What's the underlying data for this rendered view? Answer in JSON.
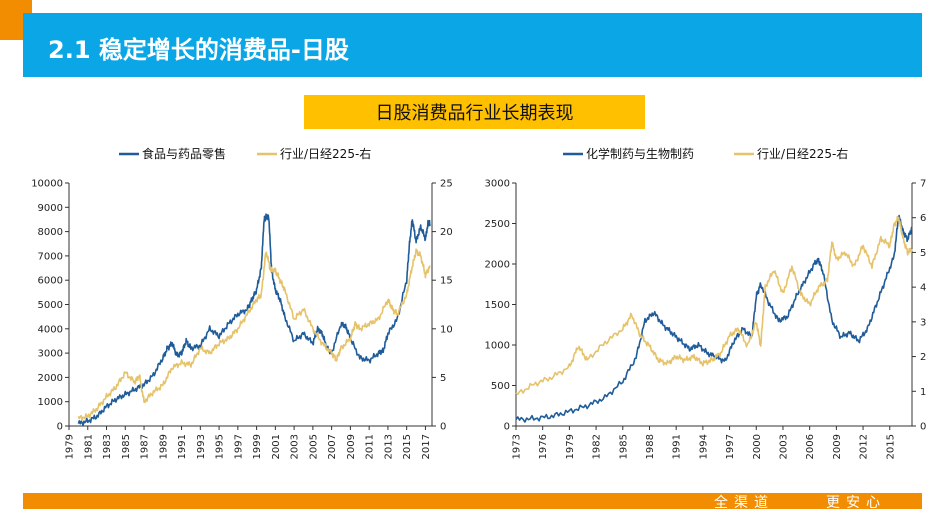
{
  "header": {
    "title": "2.1 稳定增长的消费品-日股"
  },
  "subtitle": "日股消费品行业长期表现",
  "footer": {
    "left": "全渠道",
    "right": "更安心"
  },
  "colors": {
    "blue": "#1f5c99",
    "gold": "#e6c36a",
    "title_bar": "#0aa6e6",
    "accent": "#f28c00",
    "subtitle_bg": "#ffc000"
  },
  "chart_data": [
    {
      "type": "line",
      "legend_position": "top",
      "x_range": [
        1979,
        2017.7
      ],
      "x_ticks": [
        "1979",
        "1981",
        "1983",
        "1985",
        "1987",
        "1989",
        "1991",
        "1993",
        "1995",
        "1997",
        "1999",
        "2001",
        "2003",
        "2005",
        "2007",
        "2009",
        "2011",
        "2013",
        "2015",
        "2017"
      ],
      "y_left": {
        "range": [
          0,
          10000
        ],
        "ticks": [
          "0",
          "1000",
          "2000",
          "3000",
          "4000",
          "5000",
          "6000",
          "7000",
          "8000",
          "9000",
          "10000"
        ]
      },
      "y_right": {
        "range": [
          0,
          25
        ],
        "ticks": [
          "0",
          "5",
          "10",
          "15",
          "20",
          "25"
        ]
      },
      "series": [
        {
          "name": "食品与药品零售",
          "axis": "left",
          "color": "#1f5c99",
          "x": [
            1980.0,
            1981.0,
            1982.0,
            1983.0,
            1984.0,
            1985.0,
            1986.0,
            1987.0,
            1988.0,
            1989.0,
            1989.5,
            1990.0,
            1990.5,
            1991.0,
            1991.5,
            1992.0,
            1993.0,
            1994.0,
            1995.0,
            1996.0,
            1997.0,
            1998.0,
            1998.5,
            1999.0,
            1999.5,
            1999.8,
            2000.0,
            2000.3,
            2000.6,
            2001.0,
            2001.5,
            2002.0,
            2003.0,
            2004.0,
            2005.0,
            2005.5,
            2006.0,
            2006.5,
            2007.0,
            2008.0,
            2008.5,
            2009.0,
            2010.0,
            2011.0,
            2012.0,
            2012.5,
            2013.0,
            2014.0,
            2015.0,
            2015.3,
            2015.6,
            2016.0,
            2016.5,
            2017.0,
            2017.3,
            2017.5
          ],
          "values": [
            100,
            200,
            400,
            800,
            1100,
            1300,
            1500,
            1700,
            2100,
            2800,
            3200,
            3400,
            2900,
            3000,
            3500,
            3200,
            3300,
            4000,
            3700,
            4200,
            4600,
            4800,
            5200,
            5600,
            6500,
            8500,
            8600,
            8600,
            6400,
            5600,
            5200,
            4500,
            3500,
            3800,
            3400,
            4000,
            3800,
            3200,
            3000,
            4200,
            4100,
            3600,
            2800,
            2700,
            3000,
            3100,
            3800,
            4400,
            6000,
            7500,
            8500,
            7600,
            8200,
            7700,
            8400,
            8300
          ]
        },
        {
          "name": "行业/日经225-右",
          "axis": "right",
          "color": "#e6c36a",
          "x": [
            1980.0,
            1981.0,
            1982.0,
            1983.0,
            1984.0,
            1985.0,
            1986.0,
            1986.5,
            1987.0,
            1988.0,
            1989.0,
            1990.0,
            1991.0,
            1992.0,
            1993.0,
            1994.0,
            1995.0,
            1996.0,
            1997.0,
            1998.0,
            1999.0,
            1999.5,
            2000.0,
            2000.5,
            2001.0,
            2001.5,
            2002.0,
            2003.0,
            2004.0,
            2005.0,
            2006.0,
            2007.0,
            2007.5,
            2008.0,
            2009.0,
            2009.5,
            2010.0,
            2011.0,
            2012.0,
            2013.0,
            2013.5,
            2014.0,
            2015.0,
            2015.5,
            2016.0,
            2016.5,
            2017.0,
            2017.5
          ],
          "values": [
            0.8,
            1.0,
            1.8,
            3.0,
            4.0,
            5.5,
            4.5,
            5.2,
            2.5,
            3.5,
            4.2,
            6.0,
            6.5,
            6.3,
            8.0,
            7.5,
            8.5,
            9.0,
            10.0,
            11.5,
            13.0,
            13.5,
            18.0,
            16.0,
            16.0,
            15.0,
            14.0,
            11.0,
            12.0,
            10.0,
            8.5,
            7.5,
            6.8,
            8.0,
            9.0,
            10.5,
            10.0,
            10.5,
            11.0,
            13.0,
            12.0,
            11.5,
            13.5,
            16.0,
            18.0,
            17.5,
            15.5,
            16.5
          ]
        }
      ]
    },
    {
      "type": "line",
      "legend_position": "top",
      "x_range": [
        1973,
        2017.5
      ],
      "x_ticks": [
        "1973",
        "1976",
        "1979",
        "1982",
        "1985",
        "1988",
        "1991",
        "1994",
        "1997",
        "2000",
        "2003",
        "2006",
        "2009",
        "2012",
        "2015"
      ],
      "y_left": {
        "range": [
          0,
          3000
        ],
        "ticks": [
          "0",
          "500",
          "1000",
          "1500",
          "2000",
          "2500",
          "3000"
        ]
      },
      "y_right": {
        "range": [
          0,
          7
        ],
        "ticks": [
          "0",
          "1",
          "2",
          "3",
          "4",
          "5",
          "6",
          "7"
        ]
      },
      "series": [
        {
          "name": "化学制药与生物制药",
          "axis": "left",
          "color": "#1f5c99",
          "x": [
            1973.0,
            1975.0,
            1977.0,
            1979.0,
            1981.0,
            1983.0,
            1985.0,
            1986.5,
            1987.5,
            1988.5,
            1989.5,
            1990.5,
            1991.5,
            1992.5,
            1993.5,
            1994.5,
            1995.5,
            1996.5,
            1997.5,
            1998.5,
            1999.5,
            2000.0,
            2000.5,
            2001.5,
            2002.5,
            2003.5,
            2004.5,
            2005.5,
            2006.5,
            2007.0,
            2007.5,
            2008.5,
            2009.5,
            2010.5,
            2011.5,
            2012.5,
            2013.5,
            2014.5,
            2015.5,
            2016.0,
            2016.5,
            2017.0,
            2017.5
          ],
          "values": [
            80,
            90,
            120,
            180,
            250,
            350,
            550,
            850,
            1300,
            1400,
            1250,
            1150,
            1050,
            950,
            1000,
            900,
            850,
            800,
            1050,
            1200,
            1100,
            1600,
            1750,
            1500,
            1300,
            1350,
            1600,
            1800,
            2000,
            2050,
            1900,
            1300,
            1100,
            1150,
            1050,
            1200,
            1500,
            1800,
            2100,
            2600,
            2400,
            2300,
            2450
          ]
        },
        {
          "name": "行业/日经225-右",
          "axis": "right",
          "color": "#e6c36a",
          "x": [
            1973.0,
            1975.0,
            1977.0,
            1979.0,
            1980.0,
            1981.0,
            1983.0,
            1985.0,
            1986.0,
            1987.0,
            1988.0,
            1989.0,
            1990.0,
            1991.0,
            1992.0,
            1993.0,
            1994.0,
            1995.0,
            1996.0,
            1997.0,
            1998.0,
            1999.0,
            2000.0,
            2000.5,
            2001.0,
            2002.0,
            2003.0,
            2004.0,
            2005.0,
            2006.0,
            2007.0,
            2008.0,
            2008.5,
            2009.0,
            2010.0,
            2011.0,
            2012.0,
            2013.0,
            2014.0,
            2015.0,
            2015.5,
            2016.0,
            2016.5,
            2017.0,
            2017.5
          ],
          "values": [
            0.9,
            1.2,
            1.4,
            1.7,
            2.3,
            1.9,
            2.4,
            2.8,
            3.2,
            2.6,
            2.3,
            1.9,
            1.8,
            2.0,
            1.9,
            2.0,
            1.8,
            1.9,
            2.1,
            2.6,
            2.8,
            2.3,
            3.0,
            2.3,
            4.0,
            4.5,
            3.8,
            4.6,
            3.8,
            3.5,
            4.0,
            4.2,
            5.3,
            4.8,
            5.0,
            4.6,
            5.2,
            4.6,
            5.4,
            5.2,
            5.8,
            6.0,
            5.4,
            5.0,
            5.1
          ]
        }
      ]
    }
  ]
}
